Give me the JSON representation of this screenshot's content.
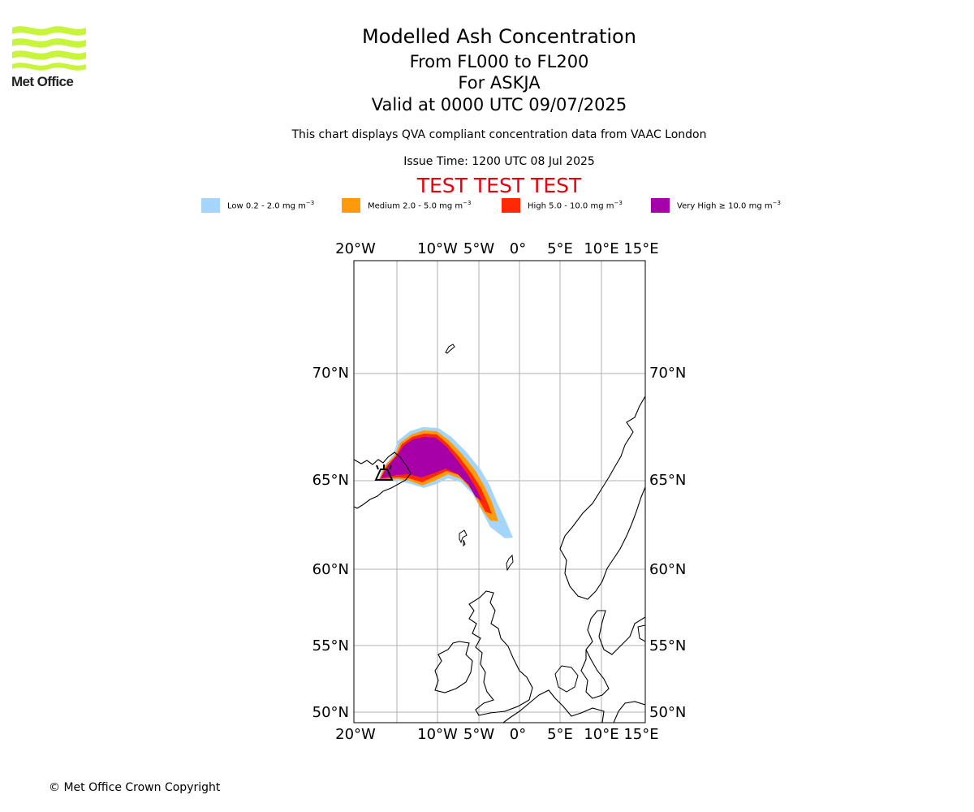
{
  "logo": {
    "name": "Met Office",
    "color": "#c8f53c"
  },
  "header": {
    "title": "Modelled Ash Concentration",
    "subtitle_1": "From FL000 to FL200",
    "subtitle_2": "For ASKJA",
    "subtitle_3": "Valid at 0000 UTC 09/07/2025",
    "description": "This chart displays QVA compliant concentration data from VAAC London",
    "issue_time": "Issue Time: 1200 UTC 08 Jul 2025",
    "test_banner": "TEST TEST TEST",
    "test_color": "#e8000b"
  },
  "legend": [
    {
      "label": "Low 0.2 - 2.0 mg m",
      "unit_exp": "−3",
      "color": "#a6d5fb"
    },
    {
      "label": "Medium 2.0 - 5.0 mg m",
      "unit_exp": "−3",
      "color": "#ff9b0a"
    },
    {
      "label": "High 5.0 - 10.0 mg m",
      "unit_exp": "−3",
      "color": "#ff2a05"
    },
    {
      "label": "Very High  ≥  10.0 mg m",
      "unit_exp": "−3",
      "color": "#a800a8"
    }
  ],
  "map": {
    "lon_labels": [
      "20°W",
      "10°W",
      "5°W",
      "0°",
      "5°E",
      "10°E",
      "15°E"
    ],
    "lat_labels": [
      "70°N",
      "65°N",
      "60°N",
      "55°N",
      "50°N"
    ],
    "volcano": "ASKJA",
    "grid": true
  },
  "footer": {
    "copyright": "© Met Office Crown Copyright"
  }
}
